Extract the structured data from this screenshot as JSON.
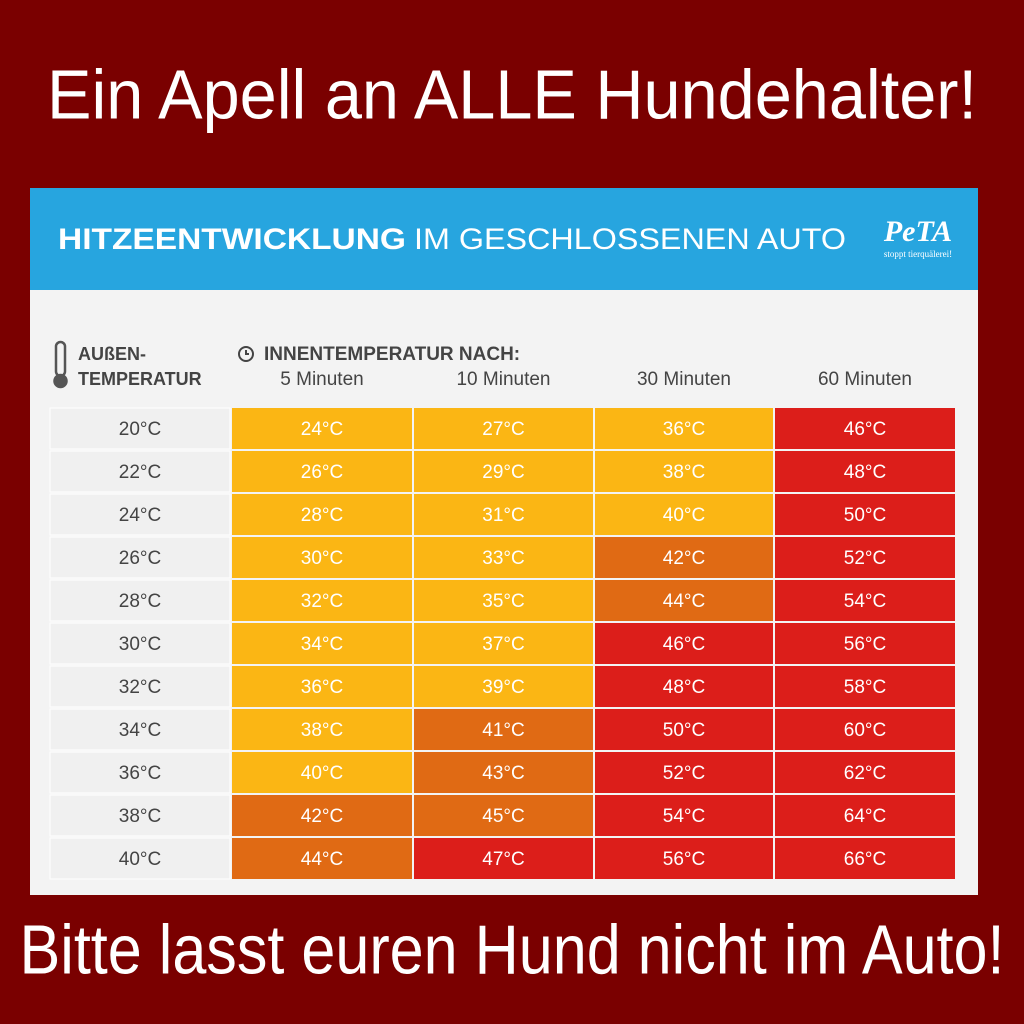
{
  "header": {
    "title": "Ein Apell an ALLE Hundehalter!"
  },
  "panel": {
    "title_bold": "HITZEENTWICKLUNG",
    "title_rest": "IM GESCHLOSSENEN AUTO",
    "logo": "PeTA",
    "logo_tagline": "stoppt tierquälerei!",
    "outside_header": [
      "AUßEN-",
      "TEMPERATUR"
    ],
    "inside_header": "INNENTEMPERATUR NACH:",
    "columns": [
      "5 Minuten",
      "10 Minuten",
      "30 Minuten",
      "60 Minuten"
    ],
    "rows": [
      {
        "outside": "20°C",
        "cells": [
          {
            "text": "24°C",
            "color": "#fbb614"
          },
          {
            "text": "27°C",
            "color": "#fbb614"
          },
          {
            "text": "36°C",
            "color": "#fbb614"
          },
          {
            "text": "46°C",
            "color": "#dc1e1a"
          }
        ]
      },
      {
        "outside": "22°C",
        "cells": [
          {
            "text": "26°C",
            "color": "#fbb614"
          },
          {
            "text": "29°C",
            "color": "#fbb614"
          },
          {
            "text": "38°C",
            "color": "#fbb614"
          },
          {
            "text": "48°C",
            "color": "#dc1e1a"
          }
        ]
      },
      {
        "outside": "24°C",
        "cells": [
          {
            "text": "28°C",
            "color": "#fbb614"
          },
          {
            "text": "31°C",
            "color": "#fbb614"
          },
          {
            "text": "40°C",
            "color": "#fbb614"
          },
          {
            "text": "50°C",
            "color": "#dc1e1a"
          }
        ]
      },
      {
        "outside": "26°C",
        "cells": [
          {
            "text": "30°C",
            "color": "#fbb614"
          },
          {
            "text": "33°C",
            "color": "#fbb614"
          },
          {
            "text": "42°C",
            "color": "#e06a14"
          },
          {
            "text": "52°C",
            "color": "#dc1e1a"
          }
        ]
      },
      {
        "outside": "28°C",
        "cells": [
          {
            "text": "32°C",
            "color": "#fbb614"
          },
          {
            "text": "35°C",
            "color": "#fbb614"
          },
          {
            "text": "44°C",
            "color": "#e06a14"
          },
          {
            "text": "54°C",
            "color": "#dc1e1a"
          }
        ]
      },
      {
        "outside": "30°C",
        "cells": [
          {
            "text": "34°C",
            "color": "#fbb614"
          },
          {
            "text": "37°C",
            "color": "#fbb614"
          },
          {
            "text": "46°C",
            "color": "#dc1e1a"
          },
          {
            "text": "56°C",
            "color": "#dc1e1a"
          }
        ]
      },
      {
        "outside": "32°C",
        "cells": [
          {
            "text": "36°C",
            "color": "#fbb614"
          },
          {
            "text": "39°C",
            "color": "#fbb614"
          },
          {
            "text": "48°C",
            "color": "#dc1e1a"
          },
          {
            "text": "58°C",
            "color": "#dc1e1a"
          }
        ]
      },
      {
        "outside": "34°C",
        "cells": [
          {
            "text": "38°C",
            "color": "#fbb614"
          },
          {
            "text": "41°C",
            "color": "#e06a14"
          },
          {
            "text": "50°C",
            "color": "#dc1e1a"
          },
          {
            "text": "60°C",
            "color": "#dc1e1a"
          }
        ]
      },
      {
        "outside": "36°C",
        "cells": [
          {
            "text": "40°C",
            "color": "#fbb614"
          },
          {
            "text": "43°C",
            "color": "#e06a14"
          },
          {
            "text": "52°C",
            "color": "#dc1e1a"
          },
          {
            "text": "62°C",
            "color": "#dc1e1a"
          }
        ]
      },
      {
        "outside": "38°C",
        "cells": [
          {
            "text": "42°C",
            "color": "#e06a14"
          },
          {
            "text": "45°C",
            "color": "#e06a14"
          },
          {
            "text": "54°C",
            "color": "#dc1e1a"
          },
          {
            "text": "64°C",
            "color": "#dc1e1a"
          }
        ]
      },
      {
        "outside": "40°C",
        "cells": [
          {
            "text": "44°C",
            "color": "#e06a14"
          },
          {
            "text": "47°C",
            "color": "#dc1e1a"
          },
          {
            "text": "56°C",
            "color": "#dc1e1a"
          },
          {
            "text": "66°C",
            "color": "#dc1e1a"
          }
        ]
      }
    ]
  },
  "footer": {
    "text": "Bitte lasst euren Hund nicht im Auto!"
  }
}
